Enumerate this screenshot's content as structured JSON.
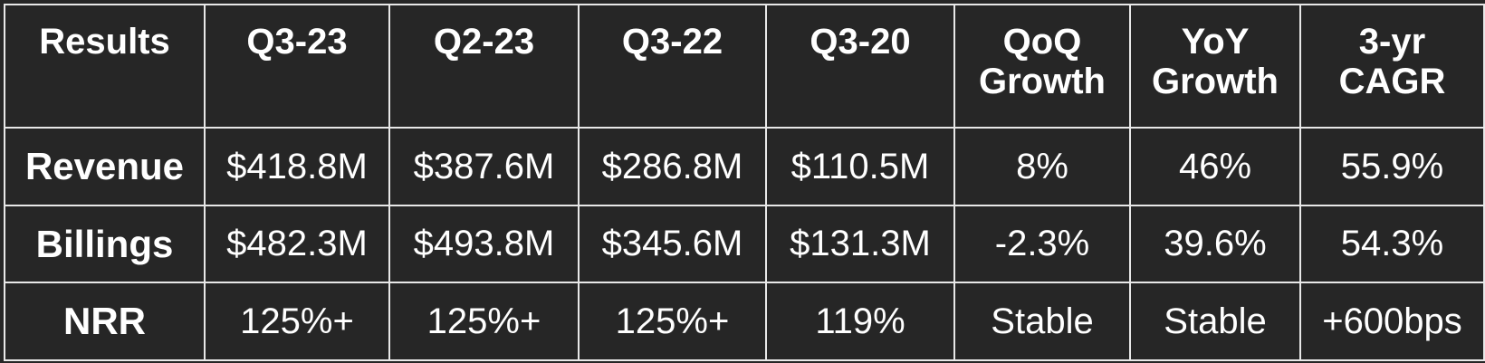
{
  "table": {
    "header": [
      "Results",
      "Q3-23",
      "Q2-23",
      "Q3-22",
      "Q3-20",
      "QoQ Growth",
      "YoY Growth",
      "3-yr CAGR"
    ],
    "rows": [
      [
        "Revenue",
        "$418.8M",
        "$387.6M",
        "$286.8M",
        "$110.5M",
        "8%",
        "46%",
        "55.9%"
      ],
      [
        "Billings",
        "$482.3M",
        "$493.8M",
        "$345.6M",
        "$131.3M",
        "-2.3%",
        "39.6%",
        "54.3%"
      ],
      [
        "NRR",
        "125%+",
        "125%+",
        "125%+",
        "119%",
        "Stable",
        "Stable",
        "+600bps"
      ]
    ]
  }
}
